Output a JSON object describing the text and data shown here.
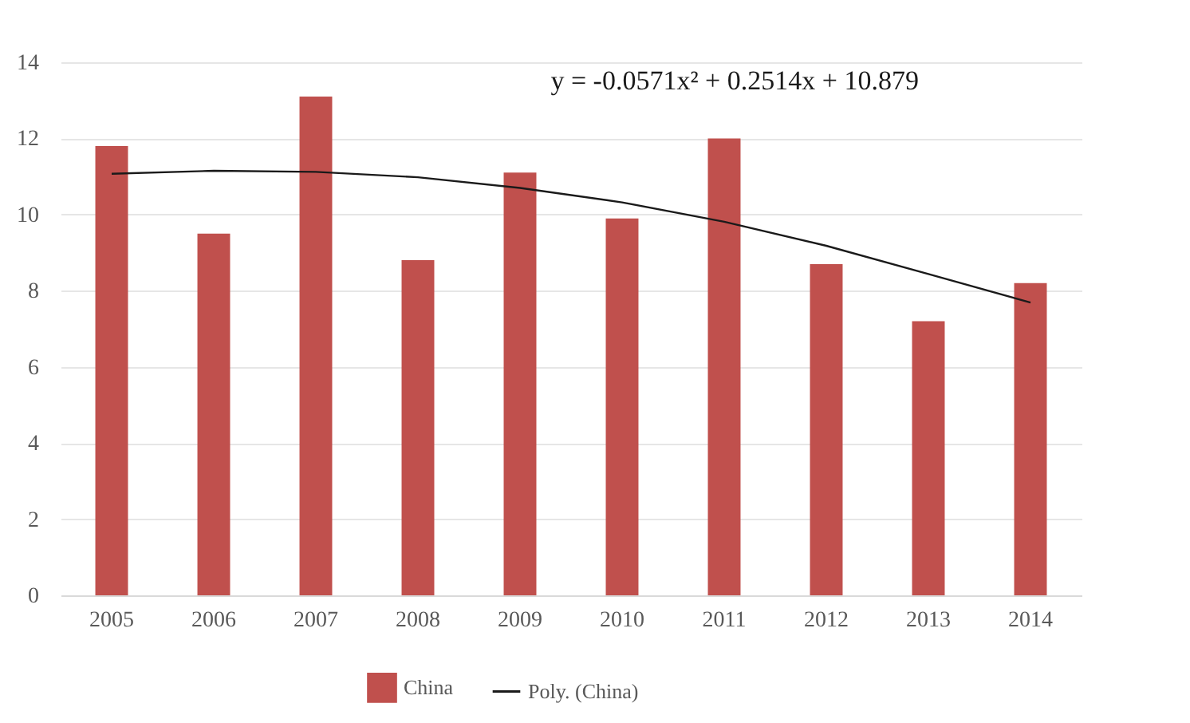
{
  "chart_data": {
    "type": "bar",
    "categories": [
      "2005",
      "2006",
      "2007",
      "2008",
      "2009",
      "2010",
      "2011",
      "2012",
      "2013",
      "2014"
    ],
    "series": [
      {
        "name": "China",
        "color": "#c0504d",
        "values": [
          11.8,
          9.5,
          13.1,
          8.8,
          11.1,
          9.9,
          12.0,
          8.7,
          7.2,
          8.2
        ]
      },
      {
        "name": "Poly. (China)",
        "type": "line",
        "color": "#1a1a1a",
        "values": [
          11.07,
          11.15,
          11.12,
          10.98,
          10.7,
          10.32,
          9.81,
          9.18,
          8.44,
          7.69
        ]
      }
    ],
    "ylim": [
      0,
      14
    ],
    "yticks": [
      0,
      2,
      4,
      6,
      8,
      10,
      12,
      14
    ],
    "grid": "y",
    "legend": "bottom",
    "marker": "none",
    "line_style": "solid",
    "annotations": [
      "y = -0.0571x² + 0.2514x + 10.879"
    ]
  }
}
